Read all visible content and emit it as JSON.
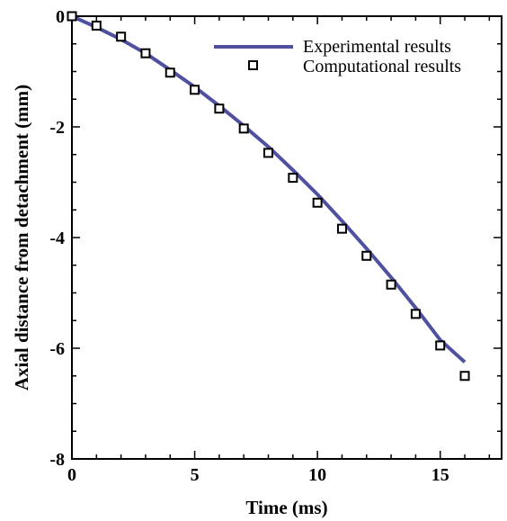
{
  "chart_data": {
    "type": "line",
    "xlabel": "Time (ms)",
    "ylabel": "Axial distance from detachment (mm)",
    "xlim": [
      0,
      17.5
    ],
    "ylim": [
      -8,
      0
    ],
    "x_ticks": [
      0,
      5,
      10,
      15
    ],
    "y_ticks": [
      0,
      -2,
      -4,
      -6,
      -8
    ],
    "x_tick_labels": [
      "0",
      "5",
      "10",
      "15"
    ],
    "y_tick_labels": [
      "0",
      "-2",
      "-4",
      "-6",
      "-8"
    ],
    "grid": false,
    "legend_position": "top-right",
    "series": [
      {
        "name": "Experimental results",
        "style": "line",
        "color": "#5050a0",
        "x": [
          0,
          1,
          2,
          3,
          4,
          5,
          6,
          7,
          8,
          9,
          10,
          11,
          12,
          13,
          14,
          15,
          16
        ],
        "y": [
          0,
          -0.2,
          -0.42,
          -0.67,
          -0.97,
          -1.28,
          -1.62,
          -1.98,
          -2.36,
          -2.78,
          -3.22,
          -3.7,
          -4.2,
          -4.72,
          -5.27,
          -5.85,
          -6.25
        ]
      },
      {
        "name": "Computational results",
        "style": "marker",
        "marker": "square",
        "color": "#000000",
        "x": [
          0,
          1,
          2,
          3,
          4,
          5,
          6,
          7,
          8,
          9,
          10,
          11,
          12,
          13,
          14,
          15,
          16
        ],
        "y": [
          0,
          -0.17,
          -0.37,
          -0.67,
          -1.02,
          -1.33,
          -1.67,
          -2.03,
          -2.47,
          -2.92,
          -3.37,
          -3.84,
          -4.33,
          -4.85,
          -5.38,
          -5.95,
          -6.5
        ]
      }
    ]
  }
}
